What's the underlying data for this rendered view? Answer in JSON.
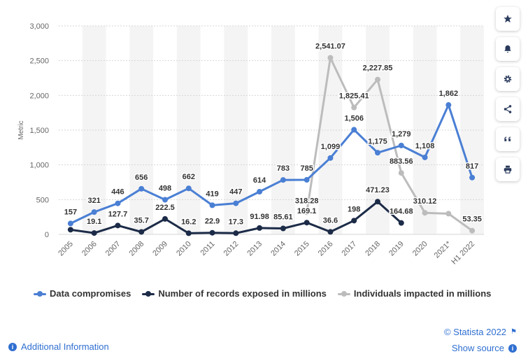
{
  "chart_data": {
    "type": "line",
    "categories": [
      "2005",
      "2006",
      "2007",
      "2008",
      "2009",
      "2010",
      "2011",
      "2012",
      "2013",
      "2014",
      "2015",
      "2016",
      "2017",
      "2018",
      "2019",
      "2020",
      "2021*",
      "H1 2022"
    ],
    "ylabel": "Metric",
    "ylim": [
      0,
      3000
    ],
    "yticks": [
      0,
      500,
      1000,
      1500,
      2000,
      2500,
      3000
    ],
    "ytick_labels": [
      "0",
      "500",
      "1,000",
      "1,500",
      "2,000",
      "2,500",
      "3,000"
    ],
    "grid": true,
    "legend_position": "bottom",
    "series": [
      {
        "name": "Data compromises",
        "color": "#4a7fd4",
        "values": [
          157,
          321,
          446,
          656,
          498,
          662,
          419,
          447,
          614,
          783,
          785,
          1099,
          1506,
          1175,
          1279,
          1108,
          1862,
          817
        ],
        "labels": [
          "157",
          "321",
          "446",
          "656",
          "498",
          "662",
          "419",
          "447",
          "614",
          "783",
          "785",
          "1,099",
          "1,506",
          "1,175",
          "1,279",
          "1,108",
          "1,862",
          "817"
        ]
      },
      {
        "name": "Number of records exposed in millions",
        "color": "#1c2b47",
        "values": [
          66.9,
          19.1,
          127.7,
          35.7,
          222.5,
          16.2,
          22.9,
          17.3,
          91.98,
          85.61,
          169.1,
          36.6,
          198,
          471.23,
          164.68,
          null,
          null,
          null
        ],
        "labels": [
          null,
          "19.1",
          "127.7",
          "35.7",
          "222.5",
          "16.2",
          "22.9",
          "17.3",
          "91.98",
          "85.61",
          "169.1",
          "36.6",
          "198",
          "471.23",
          "164.68",
          null,
          null,
          null
        ]
      },
      {
        "name": "Individuals impacted in millions",
        "color": "#bcbcbc",
        "values": [
          null,
          null,
          null,
          null,
          null,
          null,
          null,
          null,
          null,
          null,
          318.28,
          2541.07,
          1825.41,
          2227.85,
          883.56,
          310.12,
          298,
          53.35
        ],
        "labels": [
          null,
          null,
          null,
          null,
          null,
          null,
          null,
          null,
          null,
          null,
          "318.28",
          "2,541.07",
          "1,825.41",
          "2,227.85",
          "883.56",
          "310.12",
          null,
          "53.35"
        ]
      }
    ]
  },
  "sidebar": {
    "buttons": [
      {
        "icon": "star-icon"
      },
      {
        "icon": "bell-icon"
      },
      {
        "icon": "gear-icon"
      },
      {
        "icon": "share-icon"
      },
      {
        "icon": "quote-icon"
      },
      {
        "icon": "print-icon"
      }
    ]
  },
  "footer": {
    "additional_info": "Additional Information",
    "credit": "© Statista 2022",
    "show_source": "Show source"
  },
  "colors": {
    "link": "#2f6fd1",
    "band": "#f4f4f4"
  }
}
